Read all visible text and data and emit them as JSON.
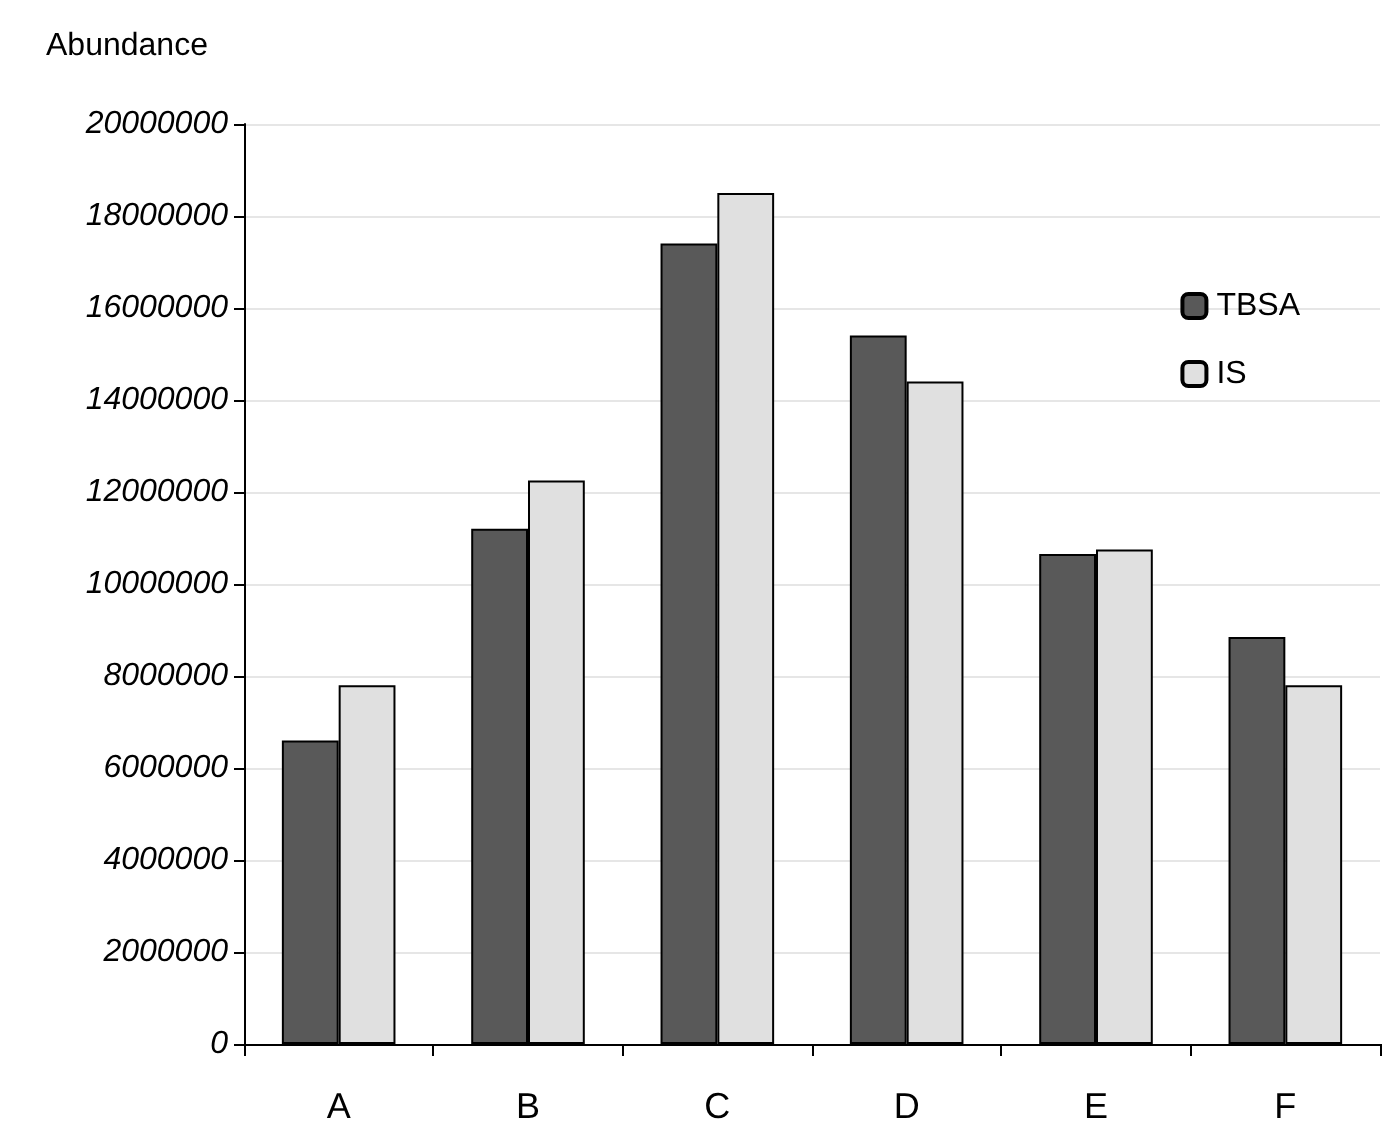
{
  "chart_data": {
    "type": "bar",
    "ylabel": "Abundance",
    "categories": [
      "A",
      "B",
      "C",
      "D",
      "E",
      "F"
    ],
    "series": [
      {
        "name": "TBSA",
        "color": "#595959",
        "values": [
          6600000,
          11200000,
          17400000,
          15400000,
          10650000,
          8850000
        ]
      },
      {
        "name": "IS",
        "color": "#e0e0e0",
        "values": [
          7800000,
          12250000,
          18500000,
          14400000,
          10750000,
          7800000
        ]
      }
    ],
    "ylim": [
      0,
      20000000
    ],
    "yticks": [
      0,
      2000000,
      4000000,
      6000000,
      8000000,
      10000000,
      12000000,
      14000000,
      16000000,
      18000000,
      20000000
    ],
    "grid": "y",
    "legend": "top right"
  }
}
